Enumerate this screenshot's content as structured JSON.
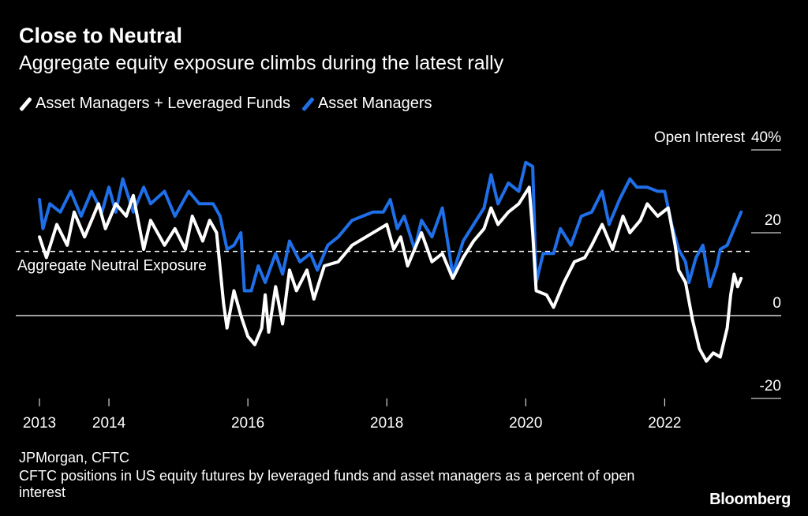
{
  "chart_data": {
    "type": "line",
    "title": "Close to Neutral",
    "subtitle": "Aggregate equity exposure climbs during the latest rally",
    "ylabel": "Open Interest",
    "ylim": [
      -20,
      40
    ],
    "xlim": [
      2013.0,
      2023.2
    ],
    "y_ticks": [
      40,
      20,
      0,
      -20
    ],
    "y_tick_labels": [
      "40%",
      "20",
      "0",
      "-20"
    ],
    "x_ticks": [
      2013,
      2014,
      2016,
      2018,
      2020,
      2022
    ],
    "x_tick_labels": [
      "2013",
      "2014",
      "2016",
      "2018",
      "2020",
      "2022"
    ],
    "reference_lines": [
      {
        "label": "Aggregate Neutral Exposure",
        "y": 15.5,
        "style": "dashed"
      },
      {
        "label": "",
        "y": 0,
        "style": "solid"
      }
    ],
    "series": [
      {
        "name": "Asset Managers + Leveraged Funds",
        "color": "#ffffff",
        "points": [
          [
            2013.0,
            19
          ],
          [
            2013.1,
            14
          ],
          [
            2013.25,
            22
          ],
          [
            2013.4,
            17
          ],
          [
            2013.5,
            25
          ],
          [
            2013.65,
            19
          ],
          [
            2013.85,
            27
          ],
          [
            2013.95,
            21
          ],
          [
            2014.1,
            27
          ],
          [
            2014.25,
            24
          ],
          [
            2014.35,
            29
          ],
          [
            2014.5,
            16
          ],
          [
            2014.6,
            23
          ],
          [
            2014.8,
            17
          ],
          [
            2014.95,
            21
          ],
          [
            2015.1,
            16
          ],
          [
            2015.2,
            24
          ],
          [
            2015.35,
            18
          ],
          [
            2015.45,
            23
          ],
          [
            2015.55,
            20
          ],
          [
            2015.65,
            3
          ],
          [
            2015.7,
            -3
          ],
          [
            2015.8,
            6
          ],
          [
            2015.9,
            0
          ],
          [
            2016.0,
            -5
          ],
          [
            2016.1,
            -7
          ],
          [
            2016.2,
            -3
          ],
          [
            2016.25,
            5
          ],
          [
            2016.3,
            -4
          ],
          [
            2016.4,
            7
          ],
          [
            2016.5,
            -2
          ],
          [
            2016.6,
            11
          ],
          [
            2016.7,
            6
          ],
          [
            2016.85,
            11
          ],
          [
            2016.95,
            4
          ],
          [
            2017.1,
            12
          ],
          [
            2017.3,
            13
          ],
          [
            2017.5,
            17
          ],
          [
            2017.7,
            19
          ],
          [
            2017.9,
            21
          ],
          [
            2018.0,
            22
          ],
          [
            2018.1,
            16
          ],
          [
            2018.2,
            19
          ],
          [
            2018.3,
            12
          ],
          [
            2018.5,
            20
          ],
          [
            2018.65,
            13
          ],
          [
            2018.8,
            15
          ],
          [
            2018.95,
            9
          ],
          [
            2019.1,
            14
          ],
          [
            2019.25,
            18
          ],
          [
            2019.4,
            21
          ],
          [
            2019.5,
            26
          ],
          [
            2019.6,
            22
          ],
          [
            2019.75,
            25
          ],
          [
            2019.9,
            27
          ],
          [
            2020.05,
            31
          ],
          [
            2020.1,
            20
          ],
          [
            2020.15,
            6
          ],
          [
            2020.3,
            5
          ],
          [
            2020.4,
            2
          ],
          [
            2020.55,
            8
          ],
          [
            2020.7,
            13
          ],
          [
            2020.85,
            14
          ],
          [
            2020.95,
            17
          ],
          [
            2021.1,
            22
          ],
          [
            2021.25,
            16
          ],
          [
            2021.4,
            24
          ],
          [
            2021.5,
            20
          ],
          [
            2021.65,
            23
          ],
          [
            2021.75,
            27
          ],
          [
            2021.9,
            24
          ],
          [
            2022.05,
            26
          ],
          [
            2022.15,
            17
          ],
          [
            2022.2,
            11
          ],
          [
            2022.3,
            8
          ],
          [
            2022.4,
            -1
          ],
          [
            2022.5,
            -8
          ],
          [
            2022.6,
            -11
          ],
          [
            2022.7,
            -9
          ],
          [
            2022.8,
            -10
          ],
          [
            2022.9,
            -3
          ],
          [
            2022.95,
            5
          ],
          [
            2023.0,
            10
          ],
          [
            2023.05,
            7
          ],
          [
            2023.1,
            9
          ]
        ]
      },
      {
        "name": "Asset Managers",
        "color": "#1f6fe8",
        "points": [
          [
            2013.0,
            28
          ],
          [
            2013.05,
            21
          ],
          [
            2013.15,
            27
          ],
          [
            2013.3,
            25
          ],
          [
            2013.45,
            30
          ],
          [
            2013.6,
            24
          ],
          [
            2013.75,
            30
          ],
          [
            2013.9,
            25
          ],
          [
            2014.0,
            31
          ],
          [
            2014.1,
            25
          ],
          [
            2014.2,
            33
          ],
          [
            2014.35,
            25
          ],
          [
            2014.5,
            31
          ],
          [
            2014.6,
            27
          ],
          [
            2014.8,
            30
          ],
          [
            2014.95,
            24
          ],
          [
            2015.15,
            30
          ],
          [
            2015.3,
            27
          ],
          [
            2015.5,
            27
          ],
          [
            2015.6,
            24
          ],
          [
            2015.7,
            16
          ],
          [
            2015.8,
            17
          ],
          [
            2015.9,
            20
          ],
          [
            2015.95,
            6
          ],
          [
            2016.05,
            6
          ],
          [
            2016.15,
            12
          ],
          [
            2016.25,
            8
          ],
          [
            2016.4,
            15
          ],
          [
            2016.5,
            10
          ],
          [
            2016.6,
            18
          ],
          [
            2016.75,
            13
          ],
          [
            2016.9,
            15
          ],
          [
            2017.0,
            11
          ],
          [
            2017.15,
            17
          ],
          [
            2017.3,
            19
          ],
          [
            2017.5,
            23
          ],
          [
            2017.65,
            24
          ],
          [
            2017.8,
            25
          ],
          [
            2017.95,
            25
          ],
          [
            2018.05,
            28
          ],
          [
            2018.15,
            21
          ],
          [
            2018.25,
            24
          ],
          [
            2018.4,
            16
          ],
          [
            2018.5,
            23
          ],
          [
            2018.65,
            19
          ],
          [
            2018.8,
            26
          ],
          [
            2018.95,
            10
          ],
          [
            2019.1,
            18
          ],
          [
            2019.25,
            22
          ],
          [
            2019.4,
            26
          ],
          [
            2019.5,
            34
          ],
          [
            2019.6,
            27
          ],
          [
            2019.75,
            32
          ],
          [
            2019.9,
            30
          ],
          [
            2020.0,
            37
          ],
          [
            2020.1,
            36
          ],
          [
            2020.15,
            8
          ],
          [
            2020.25,
            15
          ],
          [
            2020.4,
            15
          ],
          [
            2020.5,
            21
          ],
          [
            2020.65,
            17
          ],
          [
            2020.8,
            24
          ],
          [
            2020.95,
            25
          ],
          [
            2021.1,
            30
          ],
          [
            2021.2,
            22
          ],
          [
            2021.35,
            28
          ],
          [
            2021.5,
            33
          ],
          [
            2021.6,
            31
          ],
          [
            2021.75,
            31
          ],
          [
            2021.9,
            30
          ],
          [
            2022.0,
            30
          ],
          [
            2022.1,
            22
          ],
          [
            2022.2,
            16
          ],
          [
            2022.3,
            13
          ],
          [
            2022.35,
            8
          ],
          [
            2022.45,
            14
          ],
          [
            2022.55,
            17
          ],
          [
            2022.65,
            7
          ],
          [
            2022.75,
            12
          ],
          [
            2022.8,
            16
          ],
          [
            2022.9,
            17
          ],
          [
            2022.95,
            19
          ],
          [
            2023.0,
            21
          ],
          [
            2023.1,
            25
          ]
        ]
      }
    ]
  }
}
